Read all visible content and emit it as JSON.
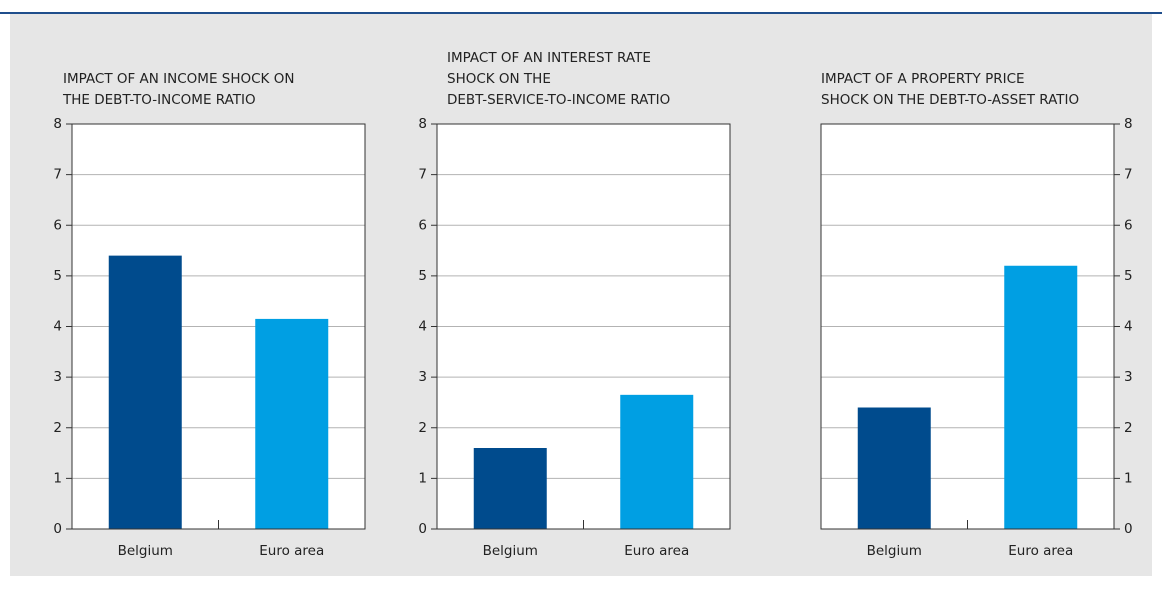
{
  "chart_data": [
    {
      "type": "bar",
      "title": [
        "IMPACT OF AN INCOME SHOCK ON",
        "THE DEBT-TO-INCOME RATIO"
      ],
      "categories": [
        "Belgium",
        "Euro area"
      ],
      "values": [
        5.4,
        4.15
      ],
      "colors": [
        "#004b8d",
        "#009fe3"
      ],
      "ylim": [
        0,
        8
      ],
      "yticks": [
        0,
        1,
        2,
        3,
        4,
        5,
        6,
        7,
        8
      ],
      "grid": true,
      "yaxis_side": "left"
    },
    {
      "type": "bar",
      "title": [
        "IMPACT OF AN INTEREST RATE",
        "SHOCK ON THE",
        "DEBT-SERVICE-TO-INCOME RATIO"
      ],
      "categories": [
        "Belgium",
        "Euro area"
      ],
      "values": [
        1.6,
        2.65
      ],
      "colors": [
        "#004b8d",
        "#009fe3"
      ],
      "ylim": [
        0,
        8
      ],
      "yticks": [
        0,
        1,
        2,
        3,
        4,
        5,
        6,
        7,
        8
      ],
      "grid": true,
      "yaxis_side": "left"
    },
    {
      "type": "bar",
      "title": [
        "IMPACT OF A PROPERTY PRICE",
        "SHOCK ON THE DEBT-TO-ASSET RATIO"
      ],
      "categories": [
        "Belgium",
        "Euro area"
      ],
      "values": [
        2.4,
        5.2
      ],
      "colors": [
        "#004b8d",
        "#009fe3"
      ],
      "ylim": [
        0,
        8
      ],
      "yticks": [
        0,
        1,
        2,
        3,
        4,
        5,
        6,
        7,
        8
      ],
      "grid": true,
      "yaxis_side": "right"
    }
  ]
}
